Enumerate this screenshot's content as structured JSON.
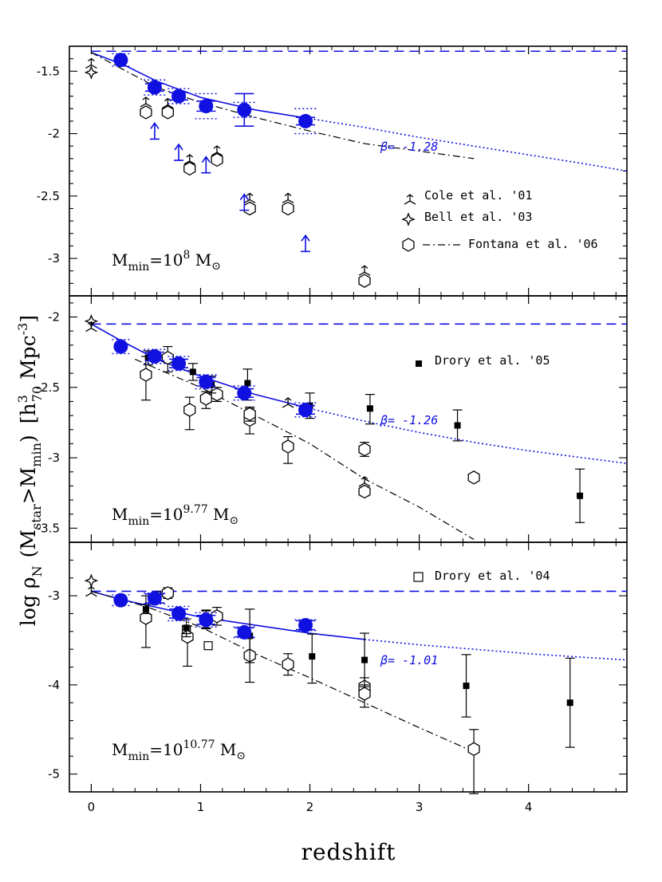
{
  "colors": {
    "model": "#1010e0",
    "data": "#000000"
  },
  "xlabel": "redshift",
  "ylabel": {
    "main": "log ρ",
    "sub": "N",
    "paren": "(M",
    "sub2": "star",
    "gt": ">M",
    "sub3": "min",
    "close": ")",
    "units_open": "[h",
    "units_sup": "3",
    "units_sub": "70",
    "units_rest": " Mpc",
    "units_sup2": "-3",
    "units_close": "]"
  },
  "x_ticks": [
    "0",
    "1",
    "2",
    "3",
    "4"
  ],
  "chart_data": [
    {
      "type": "scatter",
      "panel": "top",
      "xlim": [
        -0.2,
        4.9
      ],
      "ylim": [
        -3.3,
        -1.3
      ],
      "y_ticks": [
        "-1.5",
        "-2",
        "-2.5",
        "-3"
      ],
      "y_tick_values": [
        -1.5,
        -2,
        -2.5,
        -3
      ],
      "annotation": {
        "base": "M",
        "sub": "min",
        "eq": "=10",
        "sup": "8",
        "unit": " M",
        "unit_sym": "⊙"
      },
      "beta_label": "β= -1.28",
      "legend": [
        {
          "marker": "tripod",
          "label": "Cole et al. '01"
        },
        {
          "marker": "star",
          "label": "Bell et al. '03"
        },
        {
          "marker": "hexagon-dashdot",
          "label": "Fontana et al. '06"
        }
      ],
      "dashed_level": -1.34,
      "model_points": [
        {
          "x": 0.27,
          "y": -1.41,
          "yerr": 0.0,
          "xerr_dot": 0.08,
          "yerr_dot": 0.05
        },
        {
          "x": 0.58,
          "y": -1.63,
          "yerr": 0.03,
          "xerr_dot": 0.1,
          "yerr_dot": 0.06
        },
        {
          "x": 0.8,
          "y": -1.7,
          "yerr": 0.03,
          "xerr_dot": 0.1,
          "yerr_dot": 0.06
        },
        {
          "x": 1.05,
          "y": -1.78,
          "yerr": 0.04,
          "xerr_dot": 0.1,
          "yerr_dot": 0.1
        },
        {
          "x": 1.4,
          "y": -1.81,
          "yerr": 0.13,
          "xerr_dot": 0.1,
          "yerr_dot": 0.06
        },
        {
          "x": 1.96,
          "y": -1.9,
          "yerr": 0.03,
          "xerr_dot": 0.1,
          "yerr_dot": 0.1
        }
      ],
      "model_curve": [
        [
          0.0,
          -1.35
        ],
        [
          0.3,
          -1.45
        ],
        [
          0.6,
          -1.58
        ],
        [
          1.0,
          -1.71
        ],
        [
          1.5,
          -1.81
        ],
        [
          2.0,
          -1.88
        ],
        [
          2.5,
          -1.95
        ],
        [
          3.0,
          -2.03
        ],
        [
          3.5,
          -2.1
        ],
        [
          4.0,
          -2.17
        ],
        [
          4.5,
          -2.24
        ],
        [
          4.9,
          -2.3
        ]
      ],
      "solid_until": 2.0,
      "fontana_line": [
        [
          0.0,
          -1.35
        ],
        [
          0.6,
          -1.63
        ],
        [
          1.0,
          -1.75
        ],
        [
          1.5,
          -1.87
        ],
        [
          2.0,
          -1.98
        ],
        [
          2.5,
          -2.08
        ],
        [
          3.5,
          -2.2
        ]
      ],
      "hexagons": [
        {
          "x": 0.5,
          "y": -1.83
        },
        {
          "x": 0.7,
          "y": -1.83
        },
        {
          "x": 0.9,
          "y": -2.28
        },
        {
          "x": 1.15,
          "y": -2.21
        },
        {
          "x": 1.45,
          "y": -2.6
        },
        {
          "x": 1.8,
          "y": -2.6
        },
        {
          "x": 2.5,
          "y": -3.18
        }
      ],
      "tripods": [
        {
          "x": 0.0,
          "y": -1.45
        },
        {
          "x": 0.5,
          "y": -1.76
        },
        {
          "x": 0.7,
          "y": -1.77
        },
        {
          "x": 0.9,
          "y": -2.22
        },
        {
          "x": 1.15,
          "y": -2.15
        },
        {
          "x": 1.45,
          "y": -2.53
        },
        {
          "x": 1.8,
          "y": -2.53
        },
        {
          "x": 2.5,
          "y": -3.11
        }
      ],
      "stars": [
        {
          "x": 0.0,
          "y": -1.51
        }
      ],
      "lower_limits": [
        {
          "x": 0.58,
          "y": -1.98
        },
        {
          "x": 0.8,
          "y": -2.15
        },
        {
          "x": 1.05,
          "y": -2.25
        },
        {
          "x": 1.4,
          "y": -2.55
        },
        {
          "x": 1.96,
          "y": -2.88
        }
      ]
    },
    {
      "type": "scatter",
      "panel": "middle",
      "xlim": [
        -0.2,
        4.9
      ],
      "ylim": [
        -3.6,
        -1.85
      ],
      "y_ticks": [
        "-2",
        "-2.5",
        "-3",
        "-3.5"
      ],
      "y_tick_values": [
        -2,
        -2.5,
        -3,
        -3.5
      ],
      "annotation": {
        "base": "M",
        "sub": "min",
        "eq": "=10",
        "sup": "9.77",
        "unit": " M",
        "unit_sym": "⊙"
      },
      "beta_label": "β= -1.26",
      "legend": [
        {
          "marker": "filled-square",
          "label": "Drory et al. '05"
        }
      ],
      "dashed_level": -2.05,
      "model_points": [
        {
          "x": 0.27,
          "y": -2.21,
          "yerr": 0.0,
          "xerr_dot": 0.08,
          "yerr_dot": 0.05
        },
        {
          "x": 0.58,
          "y": -2.28,
          "yerr": 0.03,
          "xerr_dot": 0.1,
          "yerr_dot": 0.05
        },
        {
          "x": 0.8,
          "y": -2.33,
          "yerr": 0.03,
          "xerr_dot": 0.1,
          "yerr_dot": 0.05
        },
        {
          "x": 1.05,
          "y": -2.46,
          "yerr": 0.03,
          "xerr_dot": 0.1,
          "yerr_dot": 0.05
        },
        {
          "x": 1.4,
          "y": -2.54,
          "yerr": 0.03,
          "xerr_dot": 0.1,
          "yerr_dot": 0.05
        },
        {
          "x": 1.96,
          "y": -2.66,
          "yerr": 0.03,
          "xerr_dot": 0.1,
          "yerr_dot": 0.05
        }
      ],
      "model_curve": [
        [
          0.0,
          -2.05
        ],
        [
          0.3,
          -2.18
        ],
        [
          0.6,
          -2.3
        ],
        [
          1.0,
          -2.42
        ],
        [
          1.5,
          -2.55
        ],
        [
          2.0,
          -2.65
        ],
        [
          2.5,
          -2.74
        ],
        [
          3.0,
          -2.82
        ],
        [
          3.5,
          -2.89
        ],
        [
          4.0,
          -2.95
        ],
        [
          4.5,
          -3.0
        ],
        [
          4.9,
          -3.04
        ]
      ],
      "solid_until": 2.0,
      "fontana_line": [
        [
          0.4,
          -2.3
        ],
        [
          1.0,
          -2.5
        ],
        [
          1.5,
          -2.7
        ],
        [
          2.0,
          -2.9
        ],
        [
          2.5,
          -3.15
        ],
        [
          3.0,
          -3.35
        ],
        [
          3.5,
          -3.58
        ]
      ],
      "hexagons": [
        {
          "x": 0.5,
          "y": -2.41,
          "yerr_up": 0.13,
          "yerr_down": 0.18
        },
        {
          "x": 0.7,
          "y": -2.29,
          "yerr_up": 0.08,
          "yerr_down": 0.1
        },
        {
          "x": 0.9,
          "y": -2.66,
          "yerr_up": 0.09,
          "yerr_down": 0.14
        },
        {
          "x": 1.05,
          "y": -2.58,
          "yerr_up": 0.05,
          "yerr_down": 0.07
        },
        {
          "x": 1.15,
          "y": -2.55,
          "yerr_up": 0.05,
          "yerr_down": 0.05
        },
        {
          "x": 1.45,
          "y": -2.73,
          "yerr_up": 0.08,
          "yerr_down": 0.1
        },
        {
          "x": 1.45,
          "y": -2.69,
          "yerr_up": 0.05,
          "yerr_down": 0.05
        },
        {
          "x": 1.8,
          "y": -2.92,
          "yerr_up": 0.07,
          "yerr_down": 0.12
        },
        {
          "x": 2.5,
          "y": -2.94,
          "yerr_up": 0.05,
          "yerr_down": 0.05
        },
        {
          "x": 2.5,
          "y": -3.24,
          "yerr_up": 0.03,
          "yerr_down": 0.03
        },
        {
          "x": 3.5,
          "y": -3.14,
          "yerr_up": 0.0,
          "yerr_down": 0.0
        }
      ],
      "tripods": [
        {
          "x": 0.0,
          "y": -2.08
        },
        {
          "x": 1.8,
          "y": -2.62
        },
        {
          "x": 2.5,
          "y": -3.18
        }
      ],
      "stars": [
        {
          "x": 0.0,
          "y": -2.03
        }
      ],
      "squares": [
        {
          "x": 0.52,
          "y": -2.29,
          "yerr_up": 0.05,
          "yerr_down": 0.05
        },
        {
          "x": 0.93,
          "y": -2.39,
          "yerr_up": 0.06,
          "yerr_down": 0.06
        },
        {
          "x": 1.1,
          "y": -2.48,
          "yerr_up": 0.06,
          "yerr_down": 0.06
        },
        {
          "x": 1.43,
          "y": -2.47,
          "yerr_up": 0.1,
          "yerr_down": 0.12
        },
        {
          "x": 2.0,
          "y": -2.63,
          "yerr_up": 0.09,
          "yerr_down": 0.09
        },
        {
          "x": 2.55,
          "y": -2.65,
          "yerr_up": 0.1,
          "yerr_down": 0.11
        },
        {
          "x": 3.35,
          "y": -2.77,
          "yerr_up": 0.11,
          "yerr_down": 0.11
        },
        {
          "x": 4.47,
          "y": -3.27,
          "yerr_up": 0.19,
          "yerr_down": 0.19
        }
      ]
    },
    {
      "type": "scatter",
      "panel": "bottom",
      "xlim": [
        -0.2,
        4.9
      ],
      "ylim": [
        -5.2,
        -2.4
      ],
      "y_ticks": [
        "-3",
        "-4",
        "-5"
      ],
      "y_tick_values": [
        -3,
        -4,
        -5
      ],
      "annotation": {
        "base": "M",
        "sub": "min",
        "eq": "=10",
        "sup": "10.77",
        "unit": " M",
        "unit_sym": "⊙"
      },
      "beta_label": "β= -1.01",
      "legend": [
        {
          "marker": "open-square",
          "label": "Drory et al. '04"
        }
      ],
      "dashed_level": -2.95,
      "model_points": [
        {
          "x": 0.27,
          "y": -3.05,
          "yerr": 0.0,
          "xerr_dot": 0.08,
          "yerr_dot": 0.06
        },
        {
          "x": 0.58,
          "y": -3.03,
          "yerr": 0.05,
          "xerr_dot": 0.1,
          "yerr_dot": 0.06
        },
        {
          "x": 0.8,
          "y": -3.2,
          "yerr": 0.05,
          "xerr_dot": 0.1,
          "yerr_dot": 0.08
        },
        {
          "x": 1.05,
          "y": -3.27,
          "yerr": 0.05,
          "xerr_dot": 0.1,
          "yerr_dot": 0.08
        },
        {
          "x": 1.4,
          "y": -3.41,
          "yerr": 0.05,
          "xerr_dot": 0.1,
          "yerr_dot": 0.06
        },
        {
          "x": 1.96,
          "y": -3.33,
          "yerr": 0.05,
          "xerr_dot": 0.1,
          "yerr_dot": 0.06
        }
      ],
      "model_curve": [
        [
          0.0,
          -2.95
        ],
        [
          0.3,
          -3.05
        ],
        [
          0.6,
          -3.13
        ],
        [
          1.0,
          -3.24
        ],
        [
          1.5,
          -3.33
        ],
        [
          2.0,
          -3.42
        ],
        [
          2.5,
          -3.49
        ],
        [
          3.0,
          -3.55
        ],
        [
          3.5,
          -3.6
        ],
        [
          4.0,
          -3.65
        ],
        [
          4.5,
          -3.69
        ],
        [
          4.9,
          -3.72
        ]
      ],
      "solid_until": 2.5,
      "fontana_line": [
        [
          0.0,
          -2.95
        ],
        [
          0.5,
          -3.12
        ],
        [
          1.0,
          -3.35
        ],
        [
          1.5,
          -3.65
        ],
        [
          2.0,
          -3.92
        ],
        [
          2.5,
          -4.2
        ],
        [
          3.0,
          -4.48
        ],
        [
          3.5,
          -4.75
        ]
      ],
      "hexagons": [
        {
          "x": 0.5,
          "y": -3.25,
          "yerr_up": 0.25,
          "yerr_down": 0.33
        },
        {
          "x": 0.7,
          "y": -2.97,
          "yerr_up": 0.06,
          "yerr_down": 0.06
        },
        {
          "x": 0.88,
          "y": -3.46,
          "yerr_up": 0.12,
          "yerr_down": 0.33
        },
        {
          "x": 1.05,
          "y": -3.27,
          "yerr_up": 0.1,
          "yerr_down": 0.1
        },
        {
          "x": 1.15,
          "y": -3.23,
          "yerr_up": 0.1,
          "yerr_down": 0.1
        },
        {
          "x": 1.45,
          "y": -3.67,
          "yerr_up": 0.2,
          "yerr_down": 0.3
        },
        {
          "x": 1.8,
          "y": -3.77,
          "yerr_up": 0.12,
          "yerr_down": 0.12
        },
        {
          "x": 2.5,
          "y": -4.02,
          "yerr_up": 0.1,
          "yerr_down": 0.12
        },
        {
          "x": 2.5,
          "y": -4.1,
          "yerr_up": 0.1,
          "yerr_down": 0.15
        },
        {
          "x": 3.5,
          "y": -4.72,
          "yerr_up": 0.22,
          "yerr_down": 0.5
        }
      ],
      "tripods": [
        {
          "x": 0.0,
          "y": -2.97
        }
      ],
      "stars": [
        {
          "x": 0.0,
          "y": -2.83
        }
      ],
      "open_squares": [
        {
          "x": 0.6,
          "y": -3.0
        },
        {
          "x": 0.87,
          "y": -3.38
        },
        {
          "x": 1.07,
          "y": -3.56
        }
      ],
      "squares": [
        {
          "x": 0.5,
          "y": -3.15,
          "yerr_up": 0.05,
          "yerr_down": 0.05
        },
        {
          "x": 0.87,
          "y": -3.36,
          "yerr_up": 0.1,
          "yerr_down": 0.1
        },
        {
          "x": 1.05,
          "y": -3.26,
          "yerr_up": 0.1,
          "yerr_down": 0.1
        },
        {
          "x": 1.45,
          "y": -3.45,
          "yerr_up": 0.3,
          "yerr_down": 0.3
        },
        {
          "x": 2.02,
          "y": -3.68,
          "yerr_up": 0.25,
          "yerr_down": 0.3
        },
        {
          "x": 2.5,
          "y": -3.72,
          "yerr_up": 0.3,
          "yerr_down": 0.3
        },
        {
          "x": 3.43,
          "y": -4.01,
          "yerr_up": 0.35,
          "yerr_down": 0.35
        },
        {
          "x": 4.38,
          "y": -4.2,
          "yerr_up": 0.5,
          "yerr_down": 0.5
        }
      ]
    }
  ]
}
